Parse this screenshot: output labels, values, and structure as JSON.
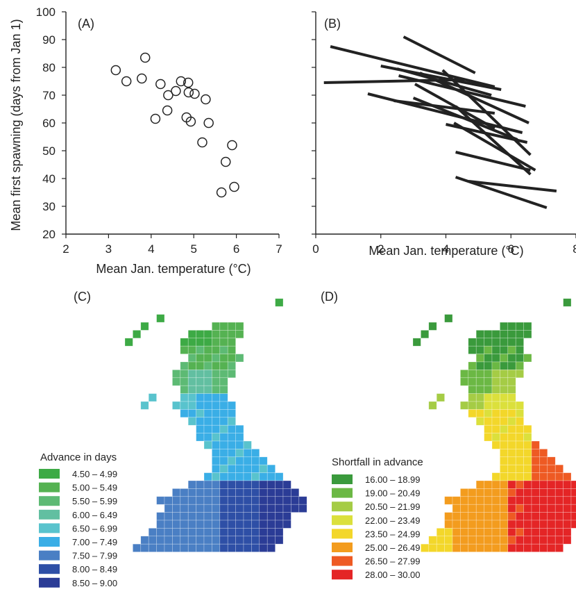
{
  "chart_data": [
    {
      "panel": "(A)",
      "type": "scatter",
      "xlabel": "Mean Jan. temperature (°C)",
      "ylabel": "Mean first spawning (days from Jan 1)",
      "xlim": [
        2,
        7
      ],
      "ylim": [
        20,
        100
      ],
      "xticks": [
        "2",
        "3",
        "4",
        "5",
        "6",
        "7"
      ],
      "yticks": [
        "20",
        "30",
        "40",
        "50",
        "60",
        "70",
        "80",
        "90",
        "100"
      ],
      "marker": "open-circle",
      "points": [
        [
          3.17,
          79
        ],
        [
          3.42,
          75
        ],
        [
          3.78,
          76
        ],
        [
          3.86,
          83.5
        ],
        [
          4.1,
          61.5
        ],
        [
          4.22,
          74
        ],
        [
          4.38,
          64.5
        ],
        [
          4.4,
          70
        ],
        [
          4.58,
          71.5
        ],
        [
          4.7,
          75
        ],
        [
          4.83,
          62
        ],
        [
          4.87,
          74.5
        ],
        [
          4.88,
          71
        ],
        [
          4.93,
          60.5
        ],
        [
          5.02,
          70.5
        ],
        [
          5.2,
          53
        ],
        [
          5.28,
          68.5
        ],
        [
          5.35,
          60
        ],
        [
          5.65,
          35
        ],
        [
          5.75,
          46
        ],
        [
          5.9,
          52
        ],
        [
          5.95,
          37
        ]
      ]
    },
    {
      "panel": "(B)",
      "type": "line",
      "xlabel": "Mean Jan. temperature (°C)",
      "xlim": [
        0,
        8
      ],
      "ylim": [
        20,
        100
      ],
      "xticks": [
        "0",
        "2",
        "4",
        "6",
        "8"
      ],
      "segments": [
        [
          [
            0.45,
            87.5
          ],
          [
            5.5,
            73
          ]
        ],
        [
          [
            0.25,
            74.5
          ],
          [
            4.6,
            75.6
          ]
        ],
        [
          [
            2.7,
            91
          ],
          [
            4.9,
            78
          ]
        ],
        [
          [
            2.0,
            80.5
          ],
          [
            5.7,
            72
          ]
        ],
        [
          [
            2.5,
            79.5
          ],
          [
            5.4,
            70
          ]
        ],
        [
          [
            2.55,
            77
          ],
          [
            6.45,
            66
          ]
        ],
        [
          [
            3.05,
            74
          ],
          [
            5.5,
            58
          ]
        ],
        [
          [
            3.2,
            78
          ],
          [
            6.55,
            60
          ]
        ],
        [
          [
            1.6,
            70.5
          ],
          [
            6.35,
            56.5
          ]
        ],
        [
          [
            2.4,
            68
          ],
          [
            5.5,
            63.5
          ]
        ],
        [
          [
            3.0,
            69
          ],
          [
            6.2,
            54
          ]
        ],
        [
          [
            3.9,
            79
          ],
          [
            6.6,
            48.5
          ]
        ],
        [
          [
            4.0,
            59.5
          ],
          [
            6.5,
            53
          ]
        ],
        [
          [
            4.3,
            66
          ],
          [
            6.6,
            41.5
          ]
        ],
        [
          [
            4.25,
            60
          ],
          [
            6.75,
            43
          ]
        ],
        [
          [
            4.3,
            49.5
          ],
          [
            6.6,
            43
          ]
        ],
        [
          [
            4.3,
            40.5
          ],
          [
            7.1,
            29.5
          ]
        ],
        [
          [
            4.7,
            39
          ],
          [
            7.4,
            35.5
          ]
        ]
      ]
    },
    {
      "panel": "(C)",
      "type": "heatmap",
      "legend_title": "Advance in days",
      "legend": [
        {
          "label": "4.50 – 4.99",
          "color": "#3daa45"
        },
        {
          "label": "5.00 – 5.49",
          "color": "#55b252"
        },
        {
          "label": "5.50 – 5.99",
          "color": "#5dba74"
        },
        {
          "label": "6.00 – 6.49",
          "color": "#62bfa1"
        },
        {
          "label": "6.50 – 6.99",
          "color": "#59c3cd"
        },
        {
          "label": "7.00 – 7.49",
          "color": "#3aaee6"
        },
        {
          "label": "7.50 – 7.99",
          "color": "#4a7fc4"
        },
        {
          "label": "8.00 – 8.49",
          "color": "#2e4fa6"
        },
        {
          "label": "8.50 – 9.00",
          "color": "#2b3c96"
        }
      ]
    },
    {
      "panel": "(D)",
      "type": "heatmap",
      "legend_title": "Shortfall in advance",
      "legend": [
        {
          "label": "16.00 – 18.99",
          "color": "#3a9a3c"
        },
        {
          "label": "19.00 – 20.49",
          "color": "#6bb844"
        },
        {
          "label": "20.50 – 21.99",
          "color": "#a5cc45"
        },
        {
          "label": "22.00 – 23.49",
          "color": "#dbe03c"
        },
        {
          "label": "23.50 – 24.99",
          "color": "#f3d72a"
        },
        {
          "label": "25.00 – 26.49",
          "color": "#f39c1e"
        },
        {
          "label": "26.50 – 27.99",
          "color": "#ee5a23"
        },
        {
          "label": "28.00 – 30.00",
          "color": "#e42526"
        }
      ]
    }
  ]
}
